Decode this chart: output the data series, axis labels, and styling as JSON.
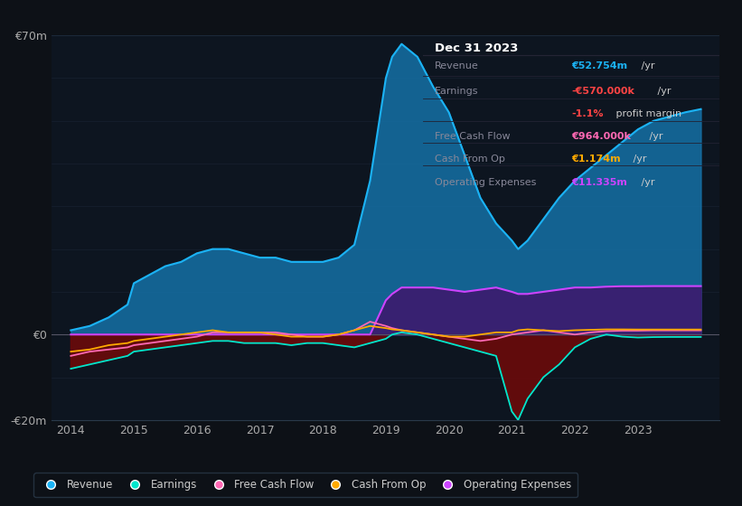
{
  "background_color": "#0d1117",
  "plot_bg_color": "#0d1520",
  "grid_color": "#1e2d40",
  "title_box": {
    "date": "Dec 31 2023"
  },
  "years": [
    2014,
    2014.3,
    2014.6,
    2014.9,
    2015,
    2015.25,
    2015.5,
    2015.75,
    2016,
    2016.25,
    2016.5,
    2016.75,
    2017,
    2017.25,
    2017.5,
    2017.75,
    2018,
    2018.25,
    2018.5,
    2018.75,
    2019,
    2019.1,
    2019.25,
    2019.5,
    2019.75,
    2020,
    2020.25,
    2020.5,
    2020.75,
    2021,
    2021.1,
    2021.25,
    2021.5,
    2021.75,
    2022,
    2022.25,
    2022.5,
    2022.75,
    2023,
    2023.25,
    2023.5,
    2023.75,
    2024.0
  ],
  "revenue": [
    1,
    2,
    4,
    7,
    12,
    14,
    16,
    17,
    19,
    20,
    20,
    19,
    18,
    18,
    17,
    17,
    17,
    18,
    21,
    36,
    60,
    65,
    68,
    65,
    58,
    52,
    42,
    32,
    26,
    22,
    20,
    22,
    27,
    32,
    36,
    39,
    42,
    45,
    48,
    50,
    51,
    52,
    52.754
  ],
  "earnings": [
    -8,
    -7,
    -6,
    -5,
    -4,
    -3.5,
    -3,
    -2.5,
    -2,
    -1.5,
    -1.5,
    -2,
    -2,
    -2,
    -2.5,
    -2,
    -2,
    -2.5,
    -3,
    -2,
    -1,
    0,
    0.5,
    0,
    -1,
    -2,
    -3,
    -4,
    -5,
    -18,
    -20,
    -15,
    -10,
    -7,
    -3,
    -1,
    0,
    -0.5,
    -0.7,
    -0.6,
    -0.57,
    -0.57,
    -0.57
  ],
  "free_cash_flow": [
    -5,
    -4,
    -3.5,
    -3,
    -2.5,
    -2,
    -1.5,
    -1,
    -0.5,
    0.5,
    0.5,
    0.5,
    0.5,
    0.5,
    0,
    -0.5,
    -0.5,
    0,
    1,
    3,
    2,
    1.5,
    1,
    0.5,
    0,
    -0.5,
    -1,
    -1.5,
    -1,
    0,
    0.2,
    0.5,
    1,
    0.5,
    0,
    0.5,
    0.8,
    0.9,
    0.9,
    0.96,
    0.96,
    0.964,
    0.964
  ],
  "cash_from_op": [
    -4,
    -3.5,
    -2.5,
    -2,
    -1.5,
    -1,
    -0.5,
    0,
    0.5,
    1,
    0.5,
    0.5,
    0.5,
    0,
    -0.5,
    -0.5,
    -0.5,
    0,
    1,
    2,
    1.5,
    1.2,
    1,
    0.5,
    0,
    -0.5,
    -0.5,
    0,
    0.5,
    0.5,
    1,
    1.2,
    1,
    0.8,
    1,
    1.1,
    1.2,
    1.2,
    1.174,
    1.174,
    1.174,
    1.174,
    1.174
  ],
  "operating_expenses": [
    0,
    0,
    0,
    0,
    0,
    0,
    0,
    0,
    0,
    0,
    0,
    0,
    0,
    0,
    0,
    0,
    0,
    0,
    0,
    0,
    8,
    9.5,
    11,
    11,
    11,
    10.5,
    10,
    10.5,
    11,
    10,
    9.5,
    9.5,
    10,
    10.5,
    11,
    11,
    11.2,
    11.3,
    11.3,
    11.335,
    11.335,
    11.335,
    11.335
  ],
  "ylim": [
    -20,
    70
  ],
  "legend": [
    {
      "label": "Revenue",
      "color": "#1bb3f5"
    },
    {
      "label": "Earnings",
      "color": "#00e6cc"
    },
    {
      "label": "Free Cash Flow",
      "color": "#ff69b4"
    },
    {
      "label": "Cash From Op",
      "color": "#ffaa00"
    },
    {
      "label": "Operating Expenses",
      "color": "#cc44ff"
    }
  ]
}
